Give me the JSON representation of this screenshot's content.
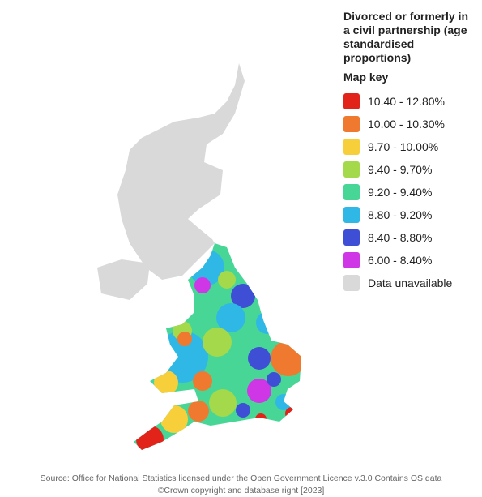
{
  "title": "Divorced or formerly in a civil partnership (age standardised proportions)",
  "legend": {
    "title": "Map key",
    "items": [
      {
        "label": "10.40 - 12.80%",
        "color": "#e2231a"
      },
      {
        "label": "10.00 - 10.30%",
        "color": "#ef7a2f"
      },
      {
        "label": "9.70 - 10.00%",
        "color": "#f7cf3a"
      },
      {
        "label": "9.40 - 9.70%",
        "color": "#a3d94a"
      },
      {
        "label": "9.20 - 9.40%",
        "color": "#48d696"
      },
      {
        "label": "8.80 - 9.20%",
        "color": "#2fb8e6"
      },
      {
        "label": "8.40 - 8.80%",
        "color": "#3e4fd6"
      },
      {
        "label": "6.00 - 8.40%",
        "color": "#cf36e6"
      },
      {
        "label": "Data unavailable",
        "color": "#d9d9d9"
      }
    ]
  },
  "source": "Source: Office for National Statistics licensed under the Open Government Licence v.3.0 Contains OS data ©Crown copyright and database right [2023]"
}
